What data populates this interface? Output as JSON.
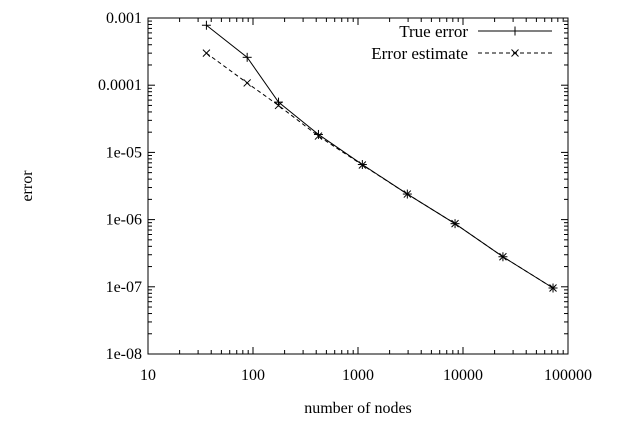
{
  "chart_data": {
    "type": "line",
    "xscale": "log",
    "yscale": "log",
    "xlim": [
      10,
      100000
    ],
    "ylim": [
      1e-08,
      0.001
    ],
    "xlabel": "number of nodes",
    "ylabel": "error",
    "grid": false,
    "legend_position": "top-right",
    "x_ticks": [
      {
        "value": 10,
        "label": "10"
      },
      {
        "value": 100,
        "label": "100"
      },
      {
        "value": 1000,
        "label": "1000"
      },
      {
        "value": 10000,
        "label": "10000"
      },
      {
        "value": 100000,
        "label": "100000"
      }
    ],
    "y_ticks": [
      {
        "value": 0.001,
        "label": "0.001"
      },
      {
        "value": 0.0001,
        "label": "0.0001"
      },
      {
        "value": 1e-05,
        "label": "1e-05"
      },
      {
        "value": 1e-06,
        "label": "1e-06"
      },
      {
        "value": 1e-07,
        "label": "1e-07"
      },
      {
        "value": 1e-08,
        "label": "1e-08"
      }
    ],
    "series": [
      {
        "name": "True error",
        "line_style": "solid",
        "marker": "plus",
        "x": [
          36,
          88,
          175,
          420,
          1100,
          2950,
          8400,
          24000,
          72000
        ],
        "y": [
          0.00078,
          0.00026,
          5.6e-05,
          1.85e-05,
          6.6e-06,
          2.4e-06,
          8.7e-07,
          2.8e-07,
          9.6e-08
        ]
      },
      {
        "name": "Error estimate",
        "line_style": "dashed",
        "marker": "x",
        "x": [
          36,
          88,
          175,
          420,
          1100,
          2950,
          8400,
          24000,
          72000
        ],
        "y": [
          0.0003,
          0.000108,
          5e-05,
          1.75e-05,
          6.5e-06,
          2.4e-06,
          8.7e-07,
          2.8e-07,
          9.6e-08
        ]
      }
    ]
  }
}
